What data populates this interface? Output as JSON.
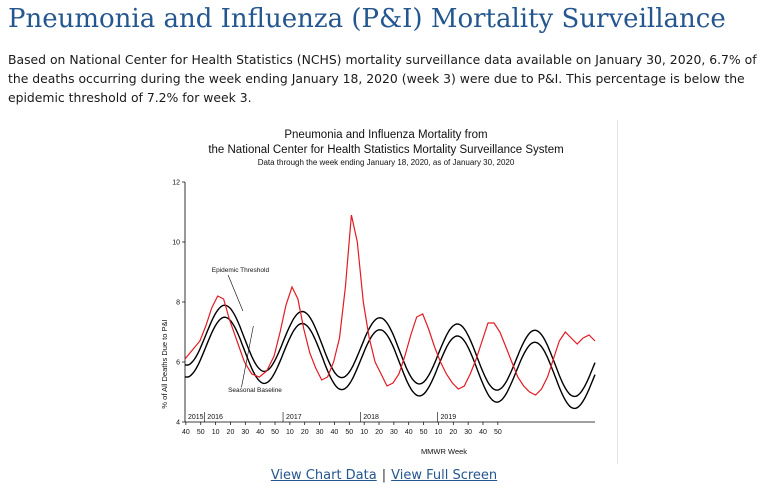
{
  "page": {
    "title": "Pneumonia and Influenza (P&I) Mortality Surveillance",
    "summary": "Based on National Center for Health Statistics (NCHS) mortality surveillance data available on January 30, 2020, 6.7% of the deaths occurring during the week ending January 18, 2020 (week 3) were due to P&I. This percentage is below the epidemic threshold of 7.2% for week 3."
  },
  "links": {
    "chart_data_label": "View Chart Data",
    "separator": "|",
    "full_screen_label": "View Full Screen"
  },
  "colors": {
    "title": "#24578f",
    "observed": "#e31b23",
    "baseline": "#000000",
    "link": "#24578f"
  },
  "chart_data": {
    "type": "line",
    "title_line1": "Pneumonia and Influenza Mortality from",
    "title_line2": "the National Center for Health Statistics Mortality Surveillance System",
    "subtitle": "Data through the week ending January 18, 2020, as of January 30, 2020",
    "xlabel": "MMWR Week",
    "ylabel": "% of All Deaths Due to P&I",
    "ylim": [
      4,
      12
    ],
    "yticks": [
      4,
      6,
      8,
      10,
      12
    ],
    "xticks": [
      "40",
      "50",
      "10",
      "20",
      "30",
      "40",
      "50",
      "10",
      "20",
      "30",
      "40",
      "50",
      "10",
      "20",
      "30",
      "40",
      "50",
      "10",
      "20",
      "30",
      "40",
      "50"
    ],
    "year_labels": [
      "2015",
      "2016",
      "2017",
      "2018",
      "2019"
    ],
    "annotations": [
      "Epidemic Threshold",
      "Seasonal Baseline"
    ],
    "x_range": [
      0,
      276
    ],
    "series": [
      {
        "key": "observed",
        "x": [
          0,
          5,
          10,
          14,
          18,
          22,
          26,
          30,
          35,
          40,
          45,
          50,
          55,
          60,
          64,
          68,
          72,
          76,
          80,
          84,
          88,
          92,
          96,
          100,
          104,
          108,
          112,
          116,
          120,
          124,
          128,
          132,
          136,
          140,
          144,
          148,
          152,
          156,
          160,
          164,
          168,
          172,
          176,
          180,
          184,
          188,
          192,
          196,
          200,
          204,
          208,
          212,
          216,
          220,
          224,
          228,
          232,
          236,
          240,
          244,
          248,
          252,
          256,
          260,
          264,
          268,
          272,
          276
        ],
        "values": [
          6.1,
          6.4,
          6.7,
          7.2,
          7.8,
          8.2,
          8.1,
          7.4,
          6.7,
          6.0,
          5.6,
          5.5,
          5.7,
          6.2,
          7.0,
          7.9,
          8.5,
          8.1,
          7.1,
          6.3,
          5.8,
          5.4,
          5.5,
          6.0,
          6.8,
          8.5,
          10.9,
          10.0,
          8.0,
          6.8,
          6.0,
          5.6,
          5.2,
          5.3,
          5.6,
          6.2,
          6.9,
          7.5,
          7.6,
          7.1,
          6.5,
          6.0,
          5.6,
          5.3,
          5.1,
          5.2,
          5.6,
          6.1,
          6.7,
          7.3,
          7.3,
          7.0,
          6.5,
          6.0,
          5.5,
          5.2,
          5.0,
          4.9,
          5.1,
          5.5,
          6.1,
          6.7,
          7.0,
          6.8,
          6.6,
          6.8,
          6.9,
          6.7
        ]
      }
    ]
  }
}
